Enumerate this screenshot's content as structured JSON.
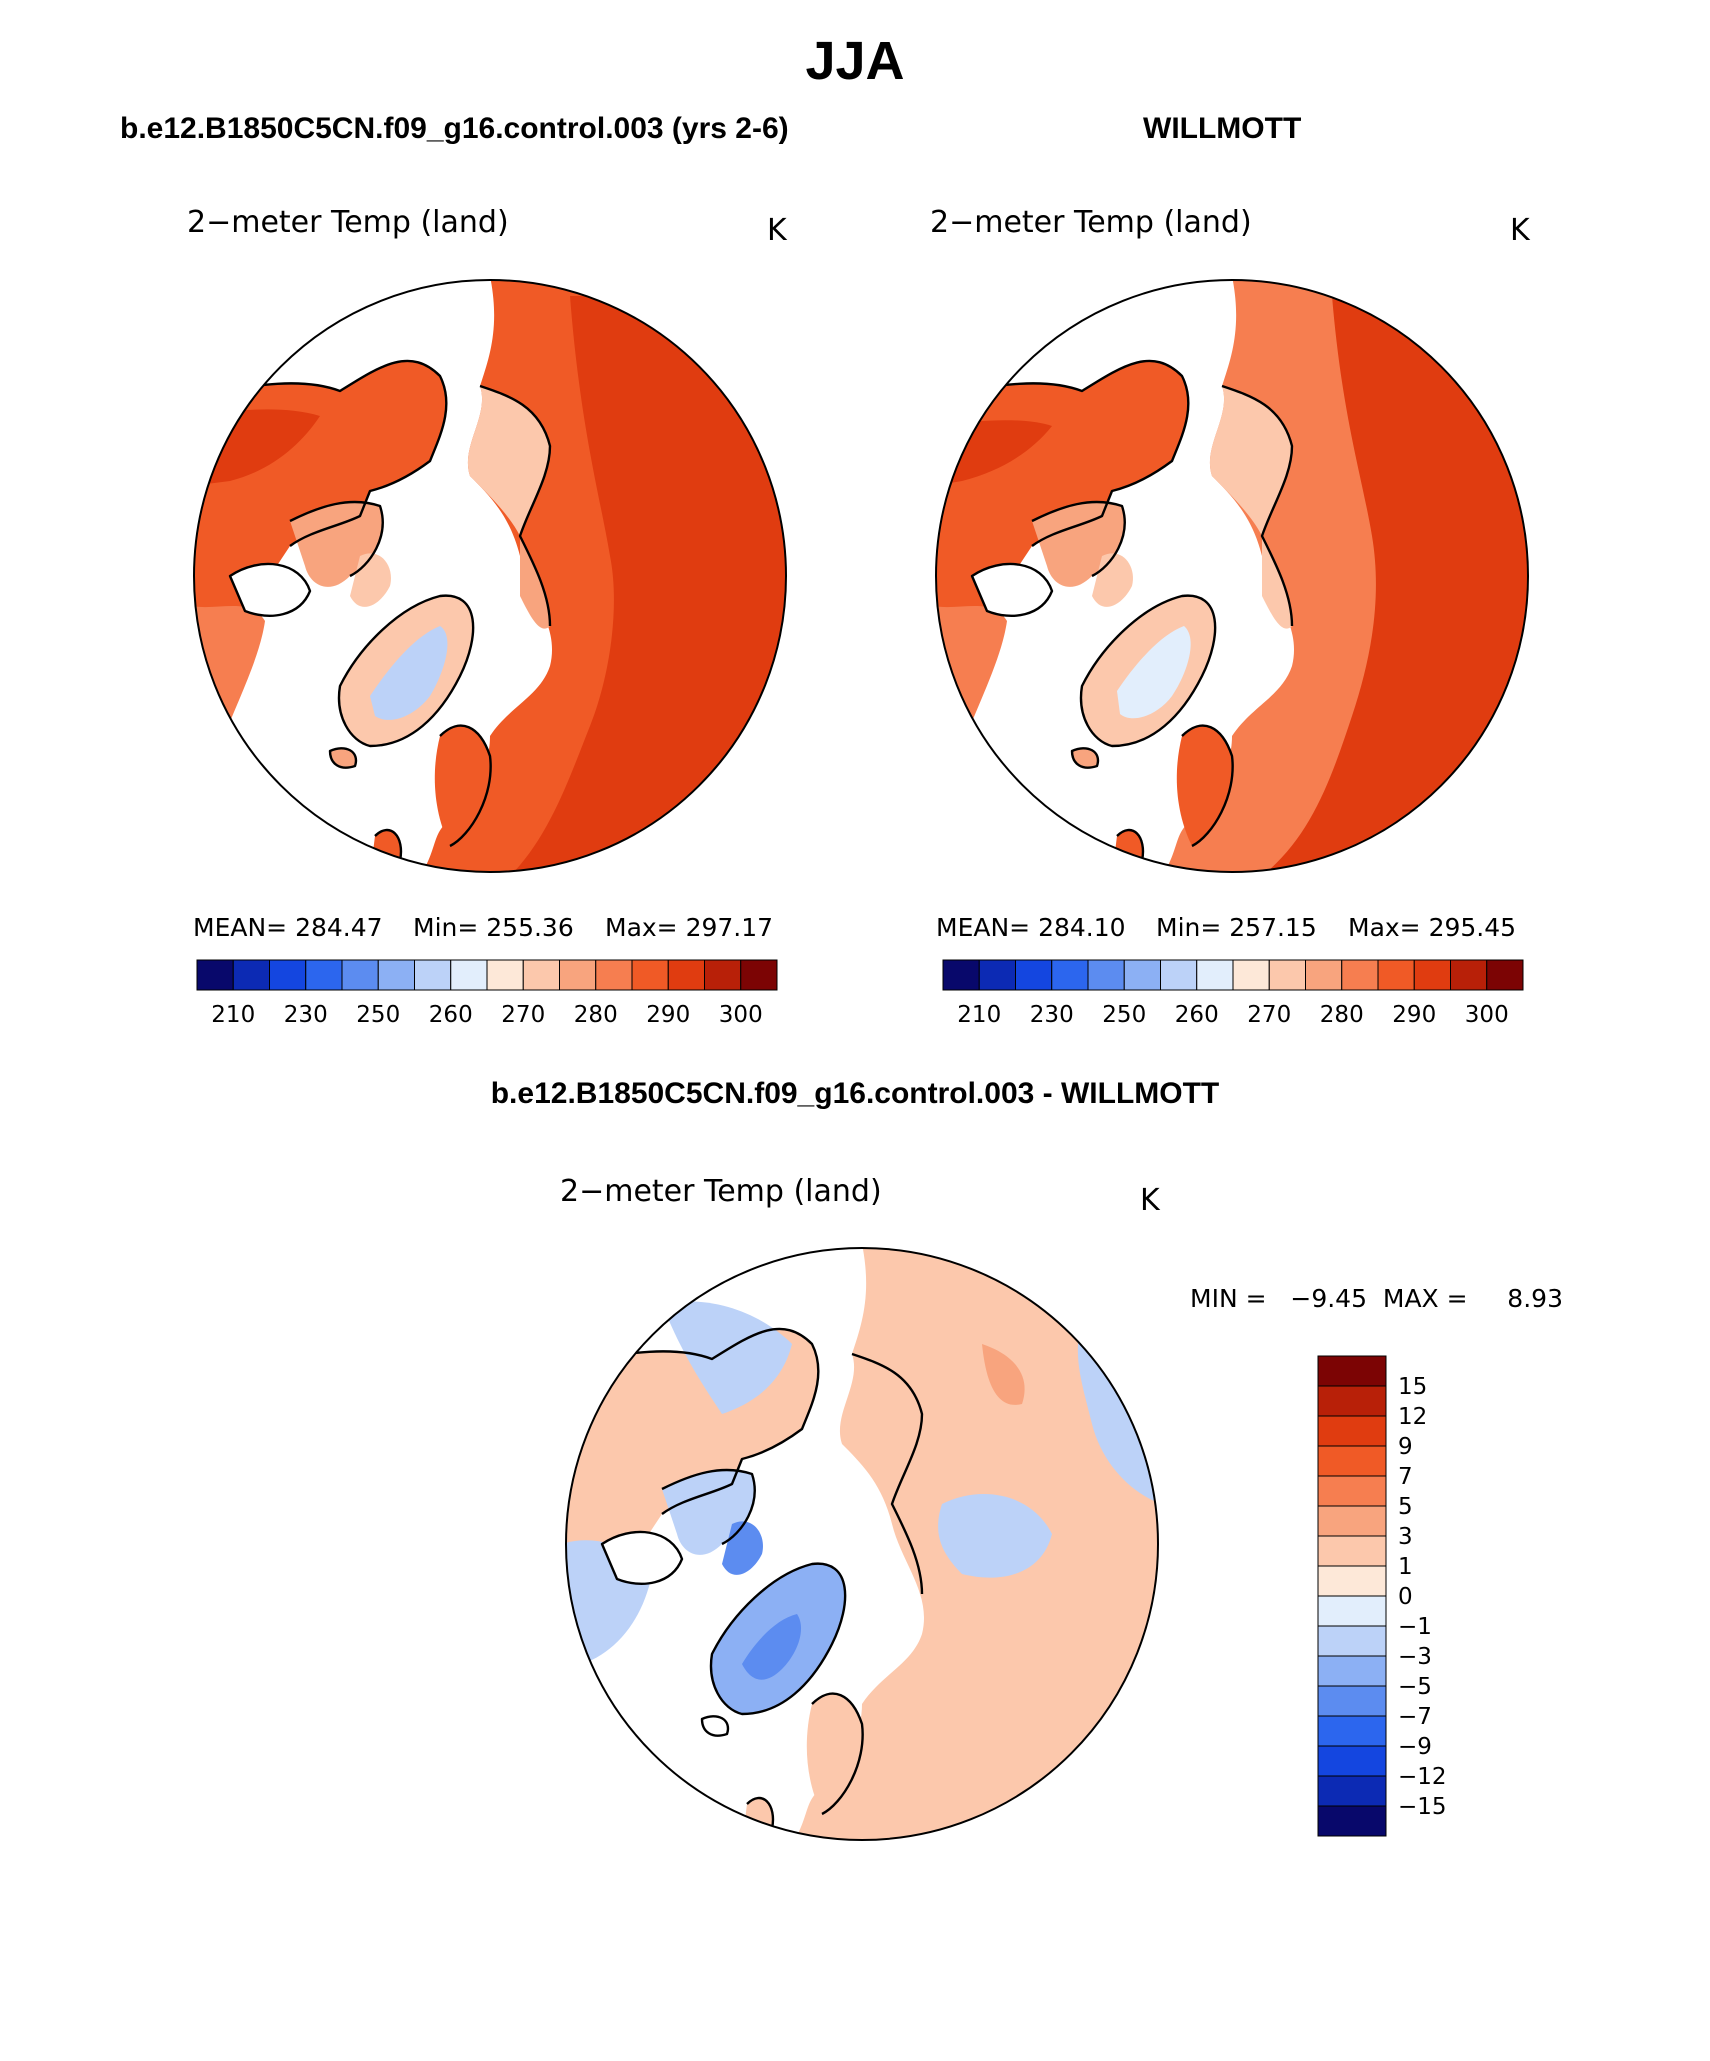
{
  "title": "JJA",
  "panels": [
    {
      "case": "b.e12.B1850C5CN.f09_g16.control.003 (yrs 2-6)",
      "variable": "2−meter Temp (land)",
      "units": "K",
      "stats": {
        "mean": "MEAN= 284.47",
        "min": "Min= 255.36",
        "max": "Max= 297.17"
      }
    },
    {
      "case": "WILLMOTT",
      "variable": "2−meter Temp (land)",
      "units": "K",
      "stats": {
        "mean": "MEAN= 284.10",
        "min": "Min= 257.15",
        "max": "Max= 295.45"
      }
    }
  ],
  "difference": {
    "title": "b.e12.B1850C5CN.f09_g16.control.003 - WILLMOTT",
    "variable": "2−meter Temp (land)",
    "units": "K",
    "minmax": "MIN =   −9.45  MAX =     8.93"
  },
  "colorbar_abs": {
    "colors": [
      "#08086b",
      "#0c2ab4",
      "#1446e0",
      "#2c66ee",
      "#5c8cf0",
      "#8cb0f4",
      "#bcd2f8",
      "#e2eefc",
      "#fde8d8",
      "#fcc8ac",
      "#f8a47e",
      "#f67e50",
      "#f05a26",
      "#e03c10",
      "#b82008",
      "#7c0404"
    ],
    "labels": [
      "210",
      "230",
      "250",
      "260",
      "270",
      "280",
      "290",
      "300"
    ]
  },
  "colorbar_diff": {
    "colors": [
      "#7c0404",
      "#b82008",
      "#e03c10",
      "#f05a26",
      "#f67e50",
      "#f8a47e",
      "#fcc8ac",
      "#fde8d8",
      "#e2eefc",
      "#bcd2f8",
      "#8cb0f4",
      "#5c8cf0",
      "#2c66ee",
      "#1446e0",
      "#0c2ab4",
      "#08086b"
    ],
    "labels": [
      "15",
      "12",
      "9",
      "7",
      "5",
      "3",
      "1",
      "0",
      "−1",
      "−3",
      "−5",
      "−7",
      "−9",
      "−12",
      "−15"
    ]
  }
}
